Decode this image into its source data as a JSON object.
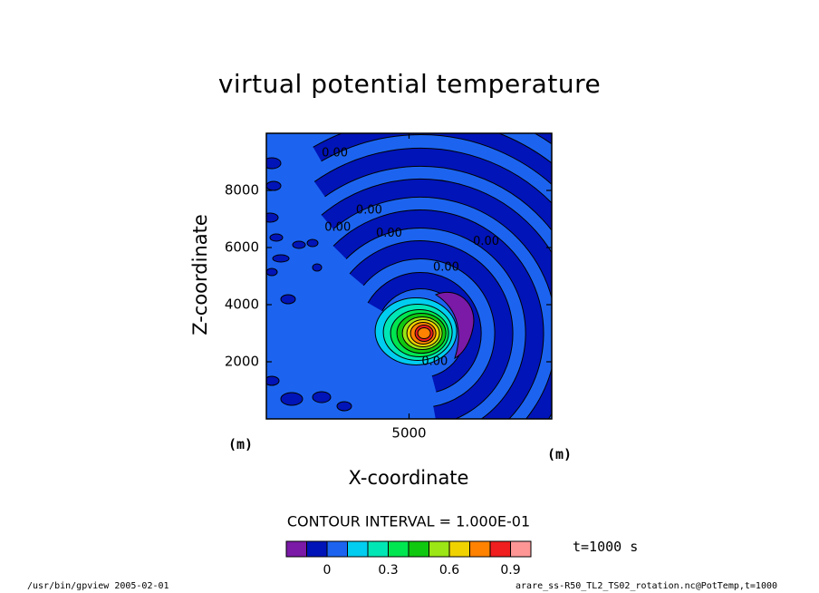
{
  "chart_data": {
    "type": "heatmap",
    "title": "virtual potential temperature",
    "xlabel": "X-coordinate",
    "ylabel": "Z-coordinate",
    "x_unit": "(m)",
    "z_unit": "(m)",
    "xlim": [
      0,
      10000
    ],
    "ylim": [
      0,
      10000
    ],
    "x_ticks": [
      5000
    ],
    "y_ticks": [
      2000,
      4000,
      6000,
      8000
    ],
    "contour_labels": [
      {
        "text": "0.00",
        "x": 2400,
        "z": 9300
      },
      {
        "text": "0.00",
        "x": 2500,
        "z": 6700
      },
      {
        "text": "0.00",
        "x": 3600,
        "z": 7300
      },
      {
        "text": "0.00",
        "x": 4300,
        "z": 6500
      },
      {
        "text": "0.00",
        "x": 7700,
        "z": 6200
      },
      {
        "text": "0.00",
        "x": 6300,
        "z": 5300
      },
      {
        "text": "0.00",
        "x": 5900,
        "z": 2000
      }
    ],
    "thermal": {
      "center_x": 5400,
      "center_z": 3000,
      "peak": 0.9
    },
    "contour_interval": "CONTOUR INTERVAL = 1.000E-01",
    "colorbar": {
      "colors": [
        "#7a1aa6",
        "#0014b8",
        "#1c64f0",
        "#00cdf0",
        "#00e6b4",
        "#00e650",
        "#10c810",
        "#9be614",
        "#f0d200",
        "#ff8200",
        "#f01e1e",
        "#ff9696"
      ],
      "tick_labels": [
        "0",
        "0.3",
        "0.6",
        "0.9"
      ],
      "tick_values": [
        0,
        0.3,
        0.6,
        0.9
      ]
    },
    "time_label": "t=1000 s"
  },
  "footer": {
    "left": "/usr/bin/gpview  2005-02-01",
    "right": "arare_ss-R50_TL2_TS02_rotation.nc@PotTemp,t=1000"
  }
}
